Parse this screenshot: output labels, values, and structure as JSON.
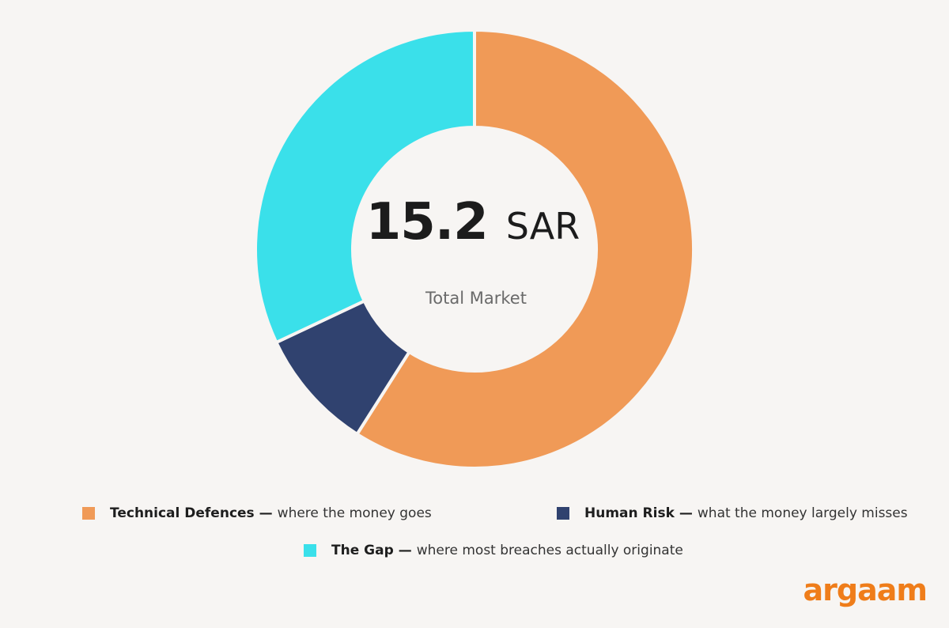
{
  "chart_data": {
    "type": "pie",
    "donut": true,
    "center": {
      "value": "15.2",
      "unit": "SAR",
      "label": "Total Market"
    },
    "series": [
      {
        "name": "Technical Defences",
        "description": "where the money goes",
        "value": 59,
        "color": "#f09a57"
      },
      {
        "name": "Human Risk",
        "description": "what the money largely misses",
        "value": 9,
        "color": "#30426f"
      },
      {
        "name": "The Gap",
        "description": "where most breaches actually originate",
        "value": 32,
        "color": "#3ae0ea"
      }
    ],
    "legend": {
      "placement": "bottom",
      "separator": "—"
    }
  },
  "brand": {
    "logo_text": "argaam",
    "color": "#ef7d1a"
  },
  "background": "#f7f5f3"
}
